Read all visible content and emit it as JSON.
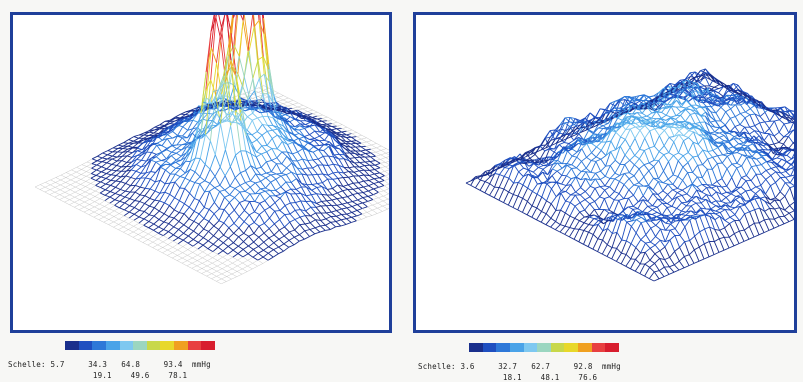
{
  "chart_data": [
    {
      "type": "surface3d",
      "title": "",
      "scale_label": "Schelle:",
      "unit": "mmHg",
      "scale_ticks_upper": [
        "5.7",
        "34.3",
        "64.8",
        "93.4"
      ],
      "scale_ticks_lower": [
        "19.1",
        "49.6",
        "78.1"
      ],
      "colorscale": [
        "#1a2f8c",
        "#1f4fc0",
        "#2e78d8",
        "#4aa3e8",
        "#7ec8f0",
        "#9bd6c0",
        "#c8d84a",
        "#e8d82a",
        "#f0a020",
        "#e84040",
        "#d81e2e"
      ],
      "peaks": [
        {
          "name": "",
          "height_mmHg": 93.4
        },
        {
          "name": "",
          "height_mmHg": 93.4
        }
      ]
    },
    {
      "type": "surface3d",
      "title": "",
      "scale_label": "Schelle:",
      "unit": "mmHg",
      "scale_ticks_upper": [
        "3.6",
        "32.7",
        "62.7",
        "92.8"
      ],
      "scale_ticks_lower": [
        "18.1",
        "48.1",
        "76.6"
      ],
      "colorscale": [
        "#1a2f8c",
        "#1f4fc0",
        "#2e78d8",
        "#4aa3e8",
        "#7ec8f0",
        "#9bd6c0",
        "#c8d84a",
        "#e8d82a",
        "#f0a020",
        "#e84040",
        "#d81e2e"
      ]
    }
  ]
}
